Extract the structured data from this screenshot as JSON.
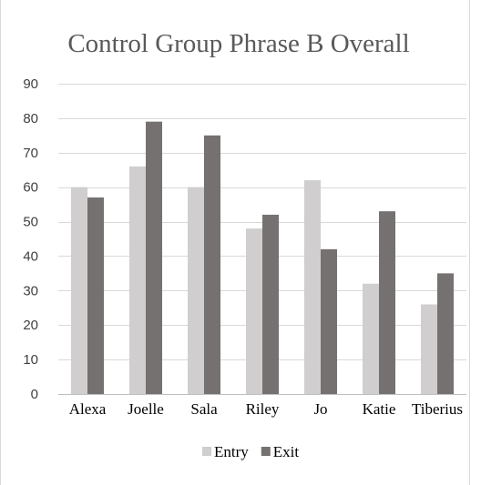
{
  "chart_data": {
    "type": "bar",
    "title": "Control Group Phrase B Overall",
    "xlabel": "",
    "ylabel": "",
    "categories": [
      "Alexa",
      "Joelle",
      "Sala",
      "Riley",
      "Jo",
      "Katie",
      "Tiberius"
    ],
    "series": [
      {
        "name": "Entry",
        "color": "#d0cece",
        "values": [
          60,
          66,
          60,
          48,
          62,
          32,
          26
        ]
      },
      {
        "name": "Exit",
        "color": "#767171",
        "values": [
          57,
          79,
          75,
          52,
          42,
          53,
          35
        ]
      }
    ],
    "yticks": [
      "0",
      "10",
      "20",
      "30",
      "40",
      "50",
      "60",
      "70",
      "80",
      "90"
    ],
    "ylim": [
      0,
      90
    ],
    "grid": true,
    "legend_position": "bottom"
  }
}
